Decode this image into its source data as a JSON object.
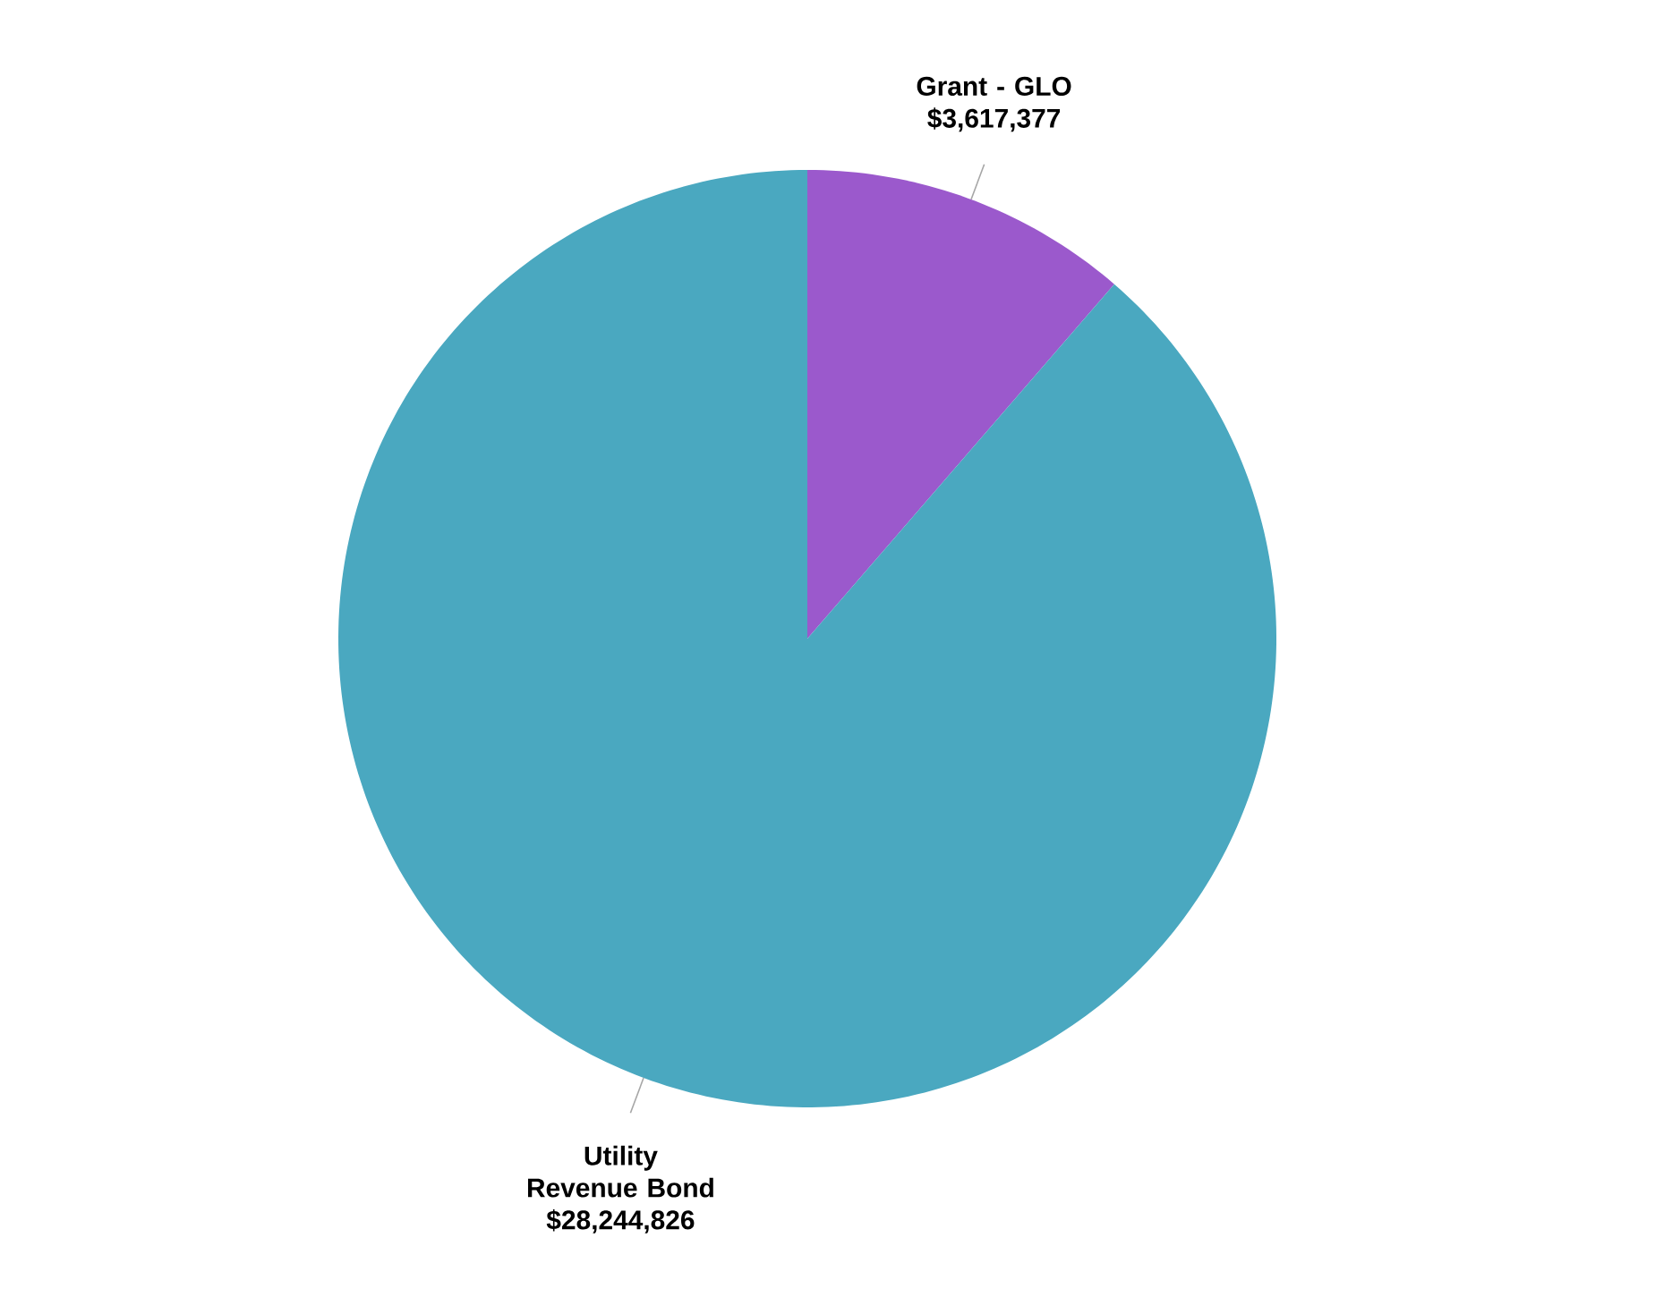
{
  "chart_data": {
    "type": "pie",
    "categories": [
      "Grant - GLO",
      "Utility Revenue Bond"
    ],
    "values": [
      3617377,
      28244826
    ],
    "value_labels": [
      "$3,617,377",
      "$28,244,826"
    ],
    "colors": [
      "#9b59cc",
      "#4aa8c0"
    ]
  }
}
